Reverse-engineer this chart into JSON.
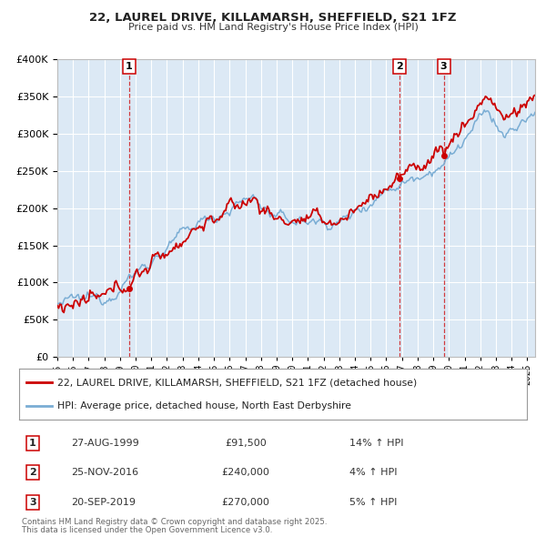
{
  "title": "22, LAUREL DRIVE, KILLAMARSH, SHEFFIELD, S21 1FZ",
  "subtitle": "Price paid vs. HM Land Registry's House Price Index (HPI)",
  "legend_line1": "22, LAUREL DRIVE, KILLAMARSH, SHEFFIELD, S21 1FZ (detached house)",
  "legend_line2": "HPI: Average price, detached house, North East Derbyshire",
  "transactions": [
    {
      "num": 1,
      "date": "27-AUG-1999",
      "price": 91500,
      "pct": "14%",
      "dir": "↑"
    },
    {
      "num": 2,
      "date": "25-NOV-2016",
      "price": 240000,
      "pct": "4%",
      "dir": "↑"
    },
    {
      "num": 3,
      "date": "20-SEP-2019",
      "price": 270000,
      "pct": "5%",
      "dir": "↑"
    }
  ],
  "footnote1": "Contains HM Land Registry data © Crown copyright and database right 2025.",
  "footnote2": "This data is licensed under the Open Government Licence v3.0.",
  "red_color": "#cc0000",
  "blue_color": "#7aadd4",
  "background_color": "#dce9f5",
  "grid_color": "#ffffff",
  "dashed_line_color": "#cc0000",
  "ylim": [
    0,
    400000
  ],
  "yticks": [
    0,
    50000,
    100000,
    150000,
    200000,
    250000,
    300000,
    350000,
    400000
  ],
  "start_year": 1995.0,
  "end_year": 2025.5
}
